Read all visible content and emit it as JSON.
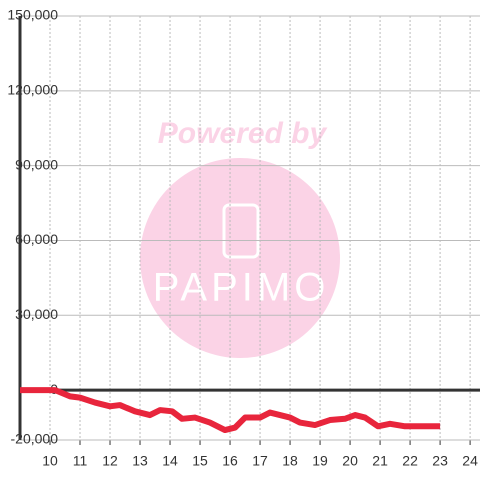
{
  "chart_data": {
    "type": "line",
    "watermark": [
      "Powered by",
      "PAPIMO"
    ],
    "x": [
      9,
      10.17,
      10.67,
      11,
      11.5,
      12,
      12.33,
      12.83,
      13.33,
      13.67,
      14.07,
      14.4,
      14.83,
      15.33,
      15.83,
      16.17,
      16.5,
      17,
      17.33,
      18,
      18.33,
      18.83,
      19.33,
      19.83,
      20.17,
      20.5,
      20.93,
      21.33,
      21.83,
      23
    ],
    "series": [
      {
        "color": "#e8253c",
        "values": [
          0,
          0,
          -2500,
          -3000,
          -5000,
          -6500,
          -6000,
          -8500,
          -10000,
          -8000,
          -8500,
          -11500,
          -11000,
          -13000,
          -16000,
          -15000,
          -11000,
          -11000,
          -9000,
          -11000,
          -13000,
          -14000,
          -12000,
          -11500,
          -10000,
          -11000,
          -14500,
          -13500,
          -14500,
          -14500
        ]
      }
    ],
    "xlim": [
      9,
      24.33
    ],
    "xticks": [
      10,
      11,
      12,
      13,
      14,
      15,
      16,
      17,
      18,
      19,
      20,
      21,
      22,
      23,
      24
    ],
    "ylim": [
      -20000,
      150000
    ],
    "yticks": [
      {
        "value": -20000,
        "label": "-20,000"
      },
      0,
      {
        "value": 30000,
        "label": "30,000"
      },
      {
        "value": 60000,
        "label": "60,000"
      },
      {
        "value": 90000,
        "label": "90,000"
      },
      {
        "value": 120000,
        "label": "120,000"
      },
      {
        "value": 150000,
        "label": "150,000"
      }
    ],
    "grid": true
  }
}
